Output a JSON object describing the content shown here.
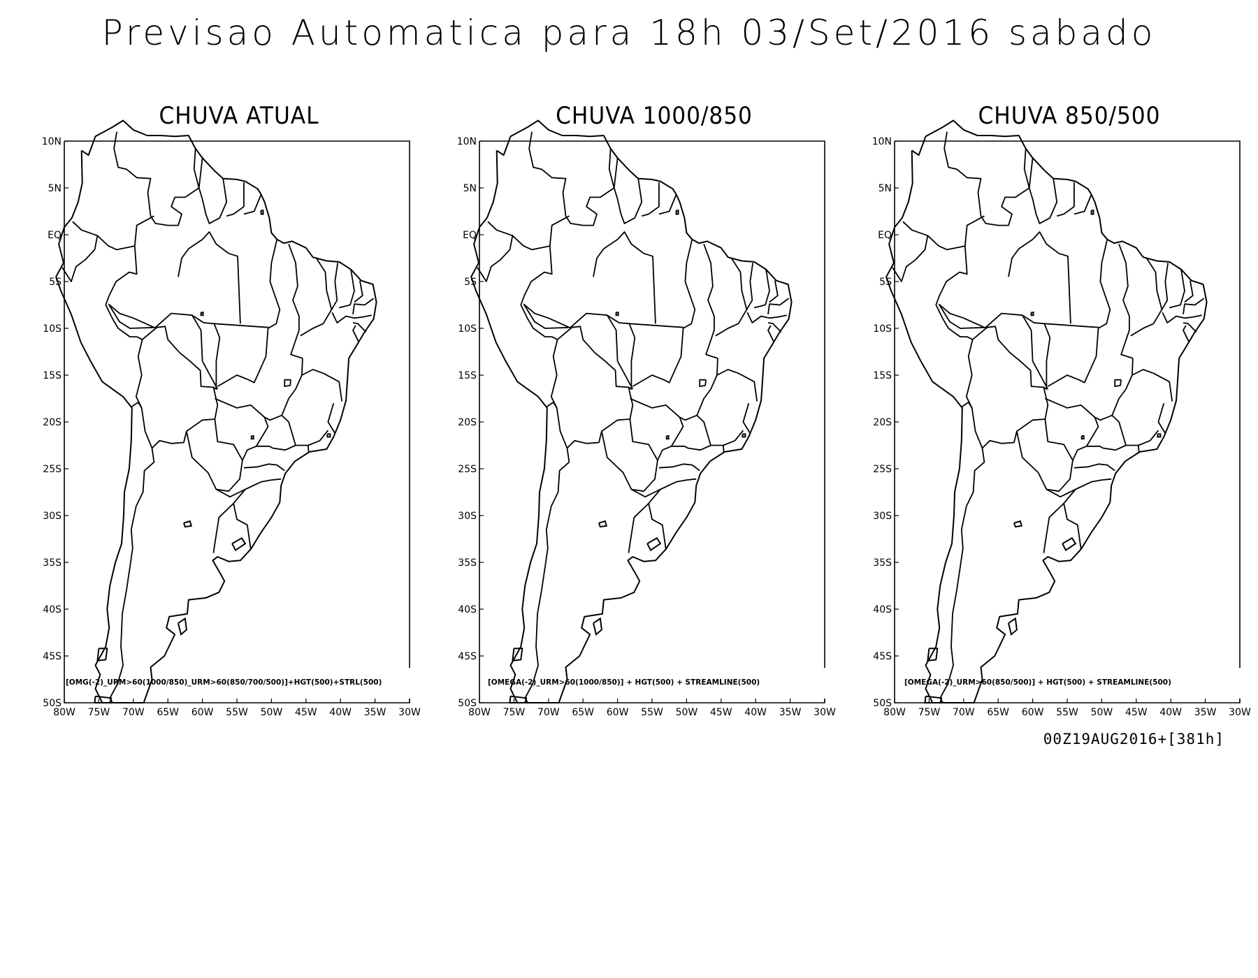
{
  "title": "Previsao Automatica para 18h 03/Set/2016 sabado",
  "run_label": "00Z19AUG2016+[381h]",
  "panels": [
    {
      "title": "CHUVA ATUAL",
      "caption": "[OMG(-2)_URM>60(1000/850)_URM>60(850/700/500)]+HGT(500)+STRL(500)"
    },
    {
      "title": "CHUVA 1000/850",
      "caption": "[OMEGA(-2)_URM>60(1000/850)] + HGT(500) + STREAMLINE(500)"
    },
    {
      "title": "CHUVA 850/500",
      "caption": "[OMEGA(-2)_URM>60(850/500)] + HGT(500) + STREAMLINE(500)"
    }
  ],
  "map": {
    "lon_range": [
      -80,
      -30
    ],
    "lat_range": [
      -50,
      10
    ],
    "lon_ticks": [
      "80W",
      "75W",
      "70W",
      "65W",
      "60W",
      "55W",
      "50W",
      "45W",
      "40W",
      "35W",
      "30W"
    ],
    "lat_ticks": [
      "10N",
      "5N",
      "EQ",
      "5S",
      "10S",
      "15S",
      "20S",
      "25S",
      "30S",
      "35S",
      "40S",
      "45S",
      "50S"
    ],
    "line_color": "#000000"
  }
}
